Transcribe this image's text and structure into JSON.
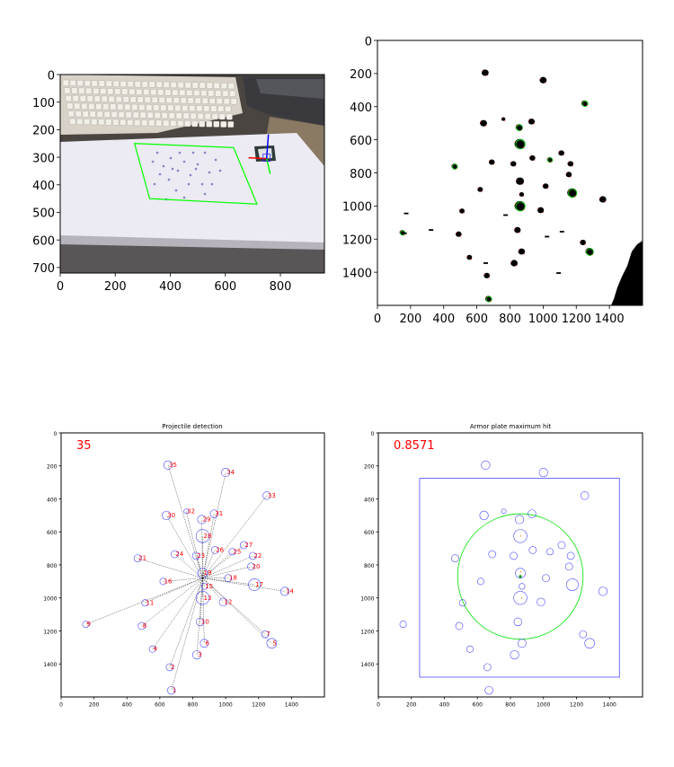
{
  "chart_data": [
    {
      "type": "image",
      "panel": "top-left",
      "x": {
        "lim": [
          0,
          960
        ],
        "ticks": [
          0,
          200,
          400,
          600,
          800
        ]
      },
      "y": {
        "lim": [
          720,
          0
        ],
        "ticks": [
          0,
          100,
          200,
          300,
          400,
          500,
          600,
          700
        ]
      },
      "overlay": {
        "quad": [
          [
            270,
            250
          ],
          [
            630,
            265
          ],
          [
            715,
            470
          ],
          [
            325,
            450
          ]
        ],
        "quad_color": "#00ff00",
        "axes_origin": [
          750,
          305
        ],
        "axes_colors": [
          "#ff0000",
          "#00ff00",
          "#0000ff"
        ]
      }
    },
    {
      "type": "image",
      "panel": "top-right",
      "x": {
        "lim": [
          0,
          1600
        ],
        "ticks": [
          0,
          200,
          400,
          600,
          800,
          1000,
          1200,
          1400
        ]
      },
      "y": {
        "lim": [
          1600,
          0
        ],
        "ticks": [
          0,
          200,
          400,
          600,
          800,
          1000,
          1200,
          1400
        ]
      }
    },
    {
      "type": "scatter",
      "panel": "bottom-left",
      "title": "Projectile detection",
      "annotation": "35",
      "x": {
        "lim": [
          0,
          1600
        ],
        "ticks": [
          0,
          200,
          400,
          600,
          800,
          1000,
          1200,
          1400
        ]
      },
      "y": {
        "lim": [
          1600,
          0
        ],
        "ticks": [
          200,
          400,
          600,
          800,
          1000,
          1200,
          1400
        ]
      },
      "center": [
        860,
        880
      ],
      "points": [
        {
          "id": "1",
          "x": 670,
          "y": 1560,
          "r": 24
        },
        {
          "id": "2",
          "x": 660,
          "y": 1420,
          "r": 22
        },
        {
          "id": "3",
          "x": 825,
          "y": 1345,
          "r": 26
        },
        {
          "id": "4",
          "x": 555,
          "y": 1310,
          "r": 20
        },
        {
          "id": "5",
          "x": 1280,
          "y": 1275,
          "r": 30
        },
        {
          "id": "6",
          "x": 870,
          "y": 1275,
          "r": 25
        },
        {
          "id": "7",
          "x": 1240,
          "y": 1220,
          "r": 22
        },
        {
          "id": "8",
          "x": 490,
          "y": 1170,
          "r": 22
        },
        {
          "id": "9",
          "x": 150,
          "y": 1160,
          "r": 20
        },
        {
          "id": "10",
          "x": 845,
          "y": 1145,
          "r": 24
        },
        {
          "id": "11",
          "x": 510,
          "y": 1030,
          "r": 20
        },
        {
          "id": "12",
          "x": 985,
          "y": 1025,
          "r": 24
        },
        {
          "id": "13",
          "x": 860,
          "y": 1000,
          "r": 40
        },
        {
          "id": "14",
          "x": 1360,
          "y": 960,
          "r": 26
        },
        {
          "id": "15",
          "x": 870,
          "y": 930,
          "r": 18
        },
        {
          "id": "16",
          "x": 620,
          "y": 900,
          "r": 20
        },
        {
          "id": "17",
          "x": 1175,
          "y": 920,
          "r": 36
        },
        {
          "id": "18",
          "x": 1015,
          "y": 880,
          "r": 22
        },
        {
          "id": "19",
          "x": 860,
          "y": 850,
          "r": 30
        },
        {
          "id": "20",
          "x": 1155,
          "y": 810,
          "r": 22
        },
        {
          "id": "21",
          "x": 465,
          "y": 760,
          "r": 22
        },
        {
          "id": "22",
          "x": 1165,
          "y": 745,
          "r": 22
        },
        {
          "id": "23",
          "x": 820,
          "y": 745,
          "r": 22
        },
        {
          "id": "24",
          "x": 690,
          "y": 735,
          "r": 22
        },
        {
          "id": "25",
          "x": 1040,
          "y": 720,
          "r": 20
        },
        {
          "id": "26",
          "x": 935,
          "y": 710,
          "r": 22
        },
        {
          "id": "27",
          "x": 1110,
          "y": 680,
          "r": 22
        },
        {
          "id": "28",
          "x": 860,
          "y": 625,
          "r": 40
        },
        {
          "id": "29",
          "x": 855,
          "y": 525,
          "r": 26
        },
        {
          "id": "30",
          "x": 640,
          "y": 500,
          "r": 26
        },
        {
          "id": "31",
          "x": 930,
          "y": 490,
          "r": 24
        },
        {
          "id": "32",
          "x": 760,
          "y": 475,
          "r": 14
        },
        {
          "id": "33",
          "x": 1250,
          "y": 380,
          "r": 24
        },
        {
          "id": "34",
          "x": 1000,
          "y": 240,
          "r": 26
        },
        {
          "id": "35",
          "x": 650,
          "y": 195,
          "r": 26
        }
      ]
    },
    {
      "type": "scatter",
      "panel": "bottom-right",
      "title": "Armor plate maximum hit",
      "annotation": "0.8571",
      "x": {
        "lim": [
          0,
          1600
        ],
        "ticks": [
          0,
          200,
          400,
          600,
          800,
          1000,
          1200,
          1400
        ]
      },
      "y": {
        "lim": [
          1600,
          0
        ],
        "ticks": [
          200,
          400,
          600,
          800,
          1000,
          1200,
          1400
        ]
      },
      "plate": {
        "x0": 250,
        "y0": 275,
        "x1": 1460,
        "y1": 1480
      },
      "circle": {
        "cx": 860,
        "cy": 870,
        "r": 380
      }
    }
  ]
}
